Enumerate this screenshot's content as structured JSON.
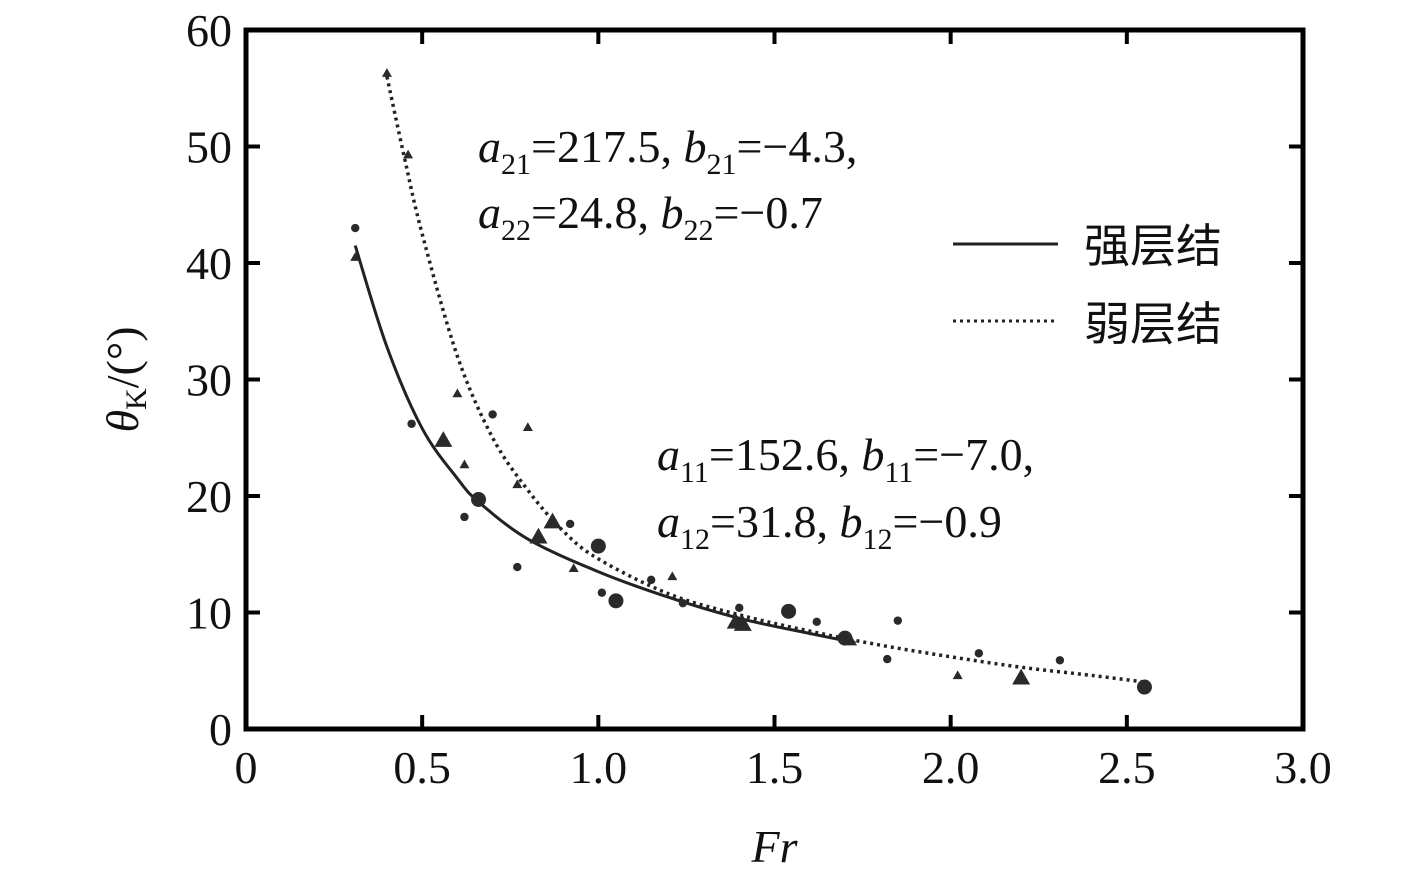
{
  "chart_data": {
    "type": "scatter",
    "xlabel": "Fr",
    "ylabel_main": "θ",
    "ylabel_sub": "K",
    "ylabel_unit": "/(°)",
    "xlim": [
      0,
      3.0
    ],
    "ylim": [
      0,
      60
    ],
    "xticks": [
      0,
      0.5,
      1.0,
      1.5,
      2.0,
      2.5,
      3.0
    ],
    "xtick_labels": [
      "0",
      "0.5",
      "1.0",
      "1.5",
      "2.0",
      "2.5",
      "3.0"
    ],
    "yticks": [
      0,
      10,
      20,
      30,
      40,
      50,
      60
    ],
    "ytick_labels": [
      "0",
      "10",
      "20",
      "30",
      "40",
      "50",
      "60"
    ],
    "grid": false,
    "legend_position": "top-right",
    "series": [
      {
        "name": "强层结",
        "line_style": "solid",
        "x_range": [
          0.31,
          1.73
        ],
        "params": {
          "a1": 152.6,
          "b1": -7.0,
          "a2": 31.8,
          "b2": -0.9
        }
      },
      {
        "name": "弱层结",
        "line_style": "dotted",
        "x_range": [
          0.4,
          2.56
        ],
        "params": {
          "a1": 217.5,
          "b1": -4.3,
          "a2": 24.8,
          "b2": -0.7
        }
      }
    ],
    "curve_points": [
      {
        "series": "强层结",
        "x": [
          0.31,
          0.4,
          0.5,
          0.6,
          0.66,
          0.8,
          1.0,
          1.2,
          1.4,
          1.6,
          1.73
        ],
        "y": [
          41.5,
          32.8,
          25.8,
          21.5,
          19.5,
          16.3,
          13.5,
          11.3,
          9.5,
          8.2,
          7.4
        ]
      },
      {
        "series": "弱层结",
        "x": [
          0.4,
          0.45,
          0.5,
          0.6,
          0.7,
          0.8,
          0.9,
          1.0,
          1.2,
          1.4,
          1.6,
          1.8,
          2.0,
          2.2,
          2.4,
          2.56
        ],
        "y": [
          56.0,
          49.0,
          42.5,
          32.0,
          25.0,
          20.5,
          17.0,
          14.6,
          11.6,
          9.8,
          8.4,
          7.2,
          6.2,
          5.3,
          4.6,
          4.0
        ]
      }
    ],
    "points": [
      {
        "x": 0.31,
        "y": 43.0,
        "marker": "circle-small"
      },
      {
        "x": 0.31,
        "y": 40.5,
        "marker": "triangle-small"
      },
      {
        "x": 0.4,
        "y": 56.3,
        "marker": "triangle-small"
      },
      {
        "x": 0.46,
        "y": 49.3,
        "marker": "triangle-small"
      },
      {
        "x": 0.47,
        "y": 26.2,
        "marker": "circle-small"
      },
      {
        "x": 0.56,
        "y": 24.8,
        "marker": "triangle-large"
      },
      {
        "x": 0.6,
        "y": 28.8,
        "marker": "triangle-small"
      },
      {
        "x": 0.62,
        "y": 22.7,
        "marker": "triangle-small"
      },
      {
        "x": 0.62,
        "y": 18.2,
        "marker": "circle-small"
      },
      {
        "x": 0.66,
        "y": 19.7,
        "marker": "circle-large"
      },
      {
        "x": 0.7,
        "y": 27.0,
        "marker": "circle-small"
      },
      {
        "x": 0.77,
        "y": 21.0,
        "marker": "triangle-small"
      },
      {
        "x": 0.77,
        "y": 13.9,
        "marker": "circle-small"
      },
      {
        "x": 0.8,
        "y": 25.9,
        "marker": "triangle-small"
      },
      {
        "x": 0.83,
        "y": 16.5,
        "marker": "triangle-large"
      },
      {
        "x": 0.87,
        "y": 17.8,
        "marker": "triangle-large"
      },
      {
        "x": 0.92,
        "y": 17.6,
        "marker": "circle-small"
      },
      {
        "x": 0.93,
        "y": 13.8,
        "marker": "triangle-small"
      },
      {
        "x": 1.0,
        "y": 15.7,
        "marker": "circle-large"
      },
      {
        "x": 1.01,
        "y": 11.7,
        "marker": "circle-small"
      },
      {
        "x": 1.05,
        "y": 11.0,
        "marker": "circle-large"
      },
      {
        "x": 1.15,
        "y": 12.8,
        "marker": "circle-small"
      },
      {
        "x": 1.21,
        "y": 13.1,
        "marker": "triangle-small"
      },
      {
        "x": 1.24,
        "y": 10.8,
        "marker": "circle-small"
      },
      {
        "x": 1.39,
        "y": 9.2,
        "marker": "triangle-large"
      },
      {
        "x": 1.4,
        "y": 10.4,
        "marker": "circle-small"
      },
      {
        "x": 1.41,
        "y": 9.0,
        "marker": "triangle-large"
      },
      {
        "x": 1.54,
        "y": 10.1,
        "marker": "circle-large"
      },
      {
        "x": 1.62,
        "y": 9.2,
        "marker": "circle-small"
      },
      {
        "x": 1.7,
        "y": 7.8,
        "marker": "circle-large"
      },
      {
        "x": 1.72,
        "y": 7.5,
        "marker": "triangle-small"
      },
      {
        "x": 1.82,
        "y": 6.0,
        "marker": "circle-small"
      },
      {
        "x": 1.85,
        "y": 9.3,
        "marker": "circle-small"
      },
      {
        "x": 2.02,
        "y": 4.6,
        "marker": "triangle-small"
      },
      {
        "x": 2.08,
        "y": 6.5,
        "marker": "circle-small"
      },
      {
        "x": 2.2,
        "y": 4.4,
        "marker": "triangle-large"
      },
      {
        "x": 2.31,
        "y": 5.9,
        "marker": "circle-small"
      },
      {
        "x": 2.55,
        "y": 3.6,
        "marker": "circle-large"
      }
    ],
    "annotations": [
      {
        "id": "weak1",
        "parts": [
          [
            "a",
            "21",
            "=217.5, "
          ],
          [
            "b",
            "21",
            "=−4.3,"
          ]
        ]
      },
      {
        "id": "weak2",
        "parts": [
          [
            "a",
            "22",
            "=24.8, "
          ],
          [
            "b",
            "22",
            "=−0.7"
          ]
        ]
      },
      {
        "id": "strong1",
        "parts": [
          [
            "a",
            "11",
            "=152.6, "
          ],
          [
            "b",
            "11",
            "=−7.0,"
          ]
        ]
      },
      {
        "id": "strong2",
        "parts": [
          [
            "a",
            "12",
            "=31.8, "
          ],
          [
            "b",
            "12",
            "=−0.9"
          ]
        ]
      }
    ]
  }
}
